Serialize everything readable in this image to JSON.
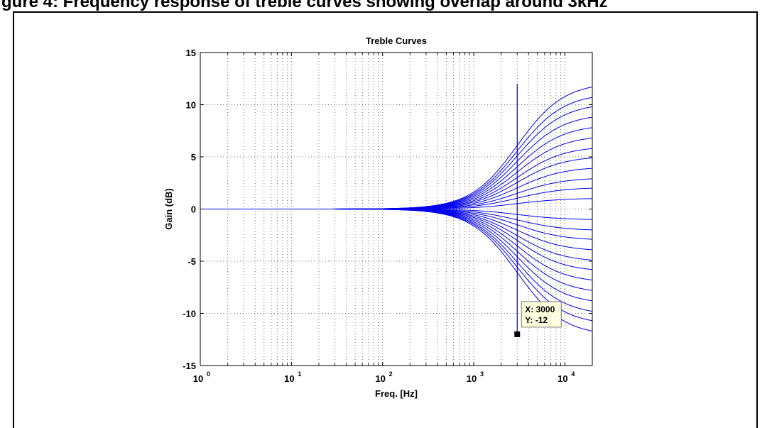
{
  "caption": "gure 4: Frequency response of treble curves showing overlap around 3kHz",
  "chart_data": {
    "type": "line",
    "title": "Treble Curves",
    "xlabel": "Freq. [Hz]",
    "ylabel": "Gain (dB)",
    "x_scale": "log",
    "xlim": [
      1,
      20000
    ],
    "ylim": [
      -15,
      15
    ],
    "grid": true,
    "x_ticks": [
      {
        "base": "10",
        "exp": "0",
        "value": 1
      },
      {
        "base": "10",
        "exp": "1",
        "value": 10
      },
      {
        "base": "10",
        "exp": "2",
        "value": 100
      },
      {
        "base": "10",
        "exp": "3",
        "value": 1000
      },
      {
        "base": "10",
        "exp": "4",
        "value": 10000
      }
    ],
    "y_ticks": [
      "-15",
      "-10",
      "-5",
      "0",
      "5",
      "10",
      "15"
    ],
    "line_color": "#0000ee",
    "series": [
      {
        "gain_at_20kHz": 11.7
      },
      {
        "gain_at_20kHz": 10.7
      },
      {
        "gain_at_20kHz": 9.8
      },
      {
        "gain_at_20kHz": 8.8
      },
      {
        "gain_at_20kHz": 7.8
      },
      {
        "gain_at_20kHz": 6.8
      },
      {
        "gain_at_20kHz": 5.8
      },
      {
        "gain_at_20kHz": 4.9
      },
      {
        "gain_at_20kHz": 3.9
      },
      {
        "gain_at_20kHz": 2.9
      },
      {
        "gain_at_20kHz": 2.0
      },
      {
        "gain_at_20kHz": 1.0
      },
      {
        "gain_at_20kHz": -1.0
      },
      {
        "gain_at_20kHz": -2.0
      },
      {
        "gain_at_20kHz": -2.9
      },
      {
        "gain_at_20kHz": -3.9
      },
      {
        "gain_at_20kHz": -4.9
      },
      {
        "gain_at_20kHz": -5.8
      },
      {
        "gain_at_20kHz": -6.8
      },
      {
        "gain_at_20kHz": -7.8
      },
      {
        "gain_at_20kHz": -8.8
      },
      {
        "gain_at_20kHz": -9.8
      },
      {
        "gain_at_20kHz": -10.7
      },
      {
        "gain_at_20kHz": -11.7
      }
    ],
    "vertical_marker": {
      "x": 3000,
      "y_from": -12,
      "y_to": 12
    },
    "datatip": {
      "x": 3000,
      "y": -12,
      "x_text": "X: 3000",
      "y_text": "Y: -12",
      "box_color": "#ffffe0"
    }
  }
}
